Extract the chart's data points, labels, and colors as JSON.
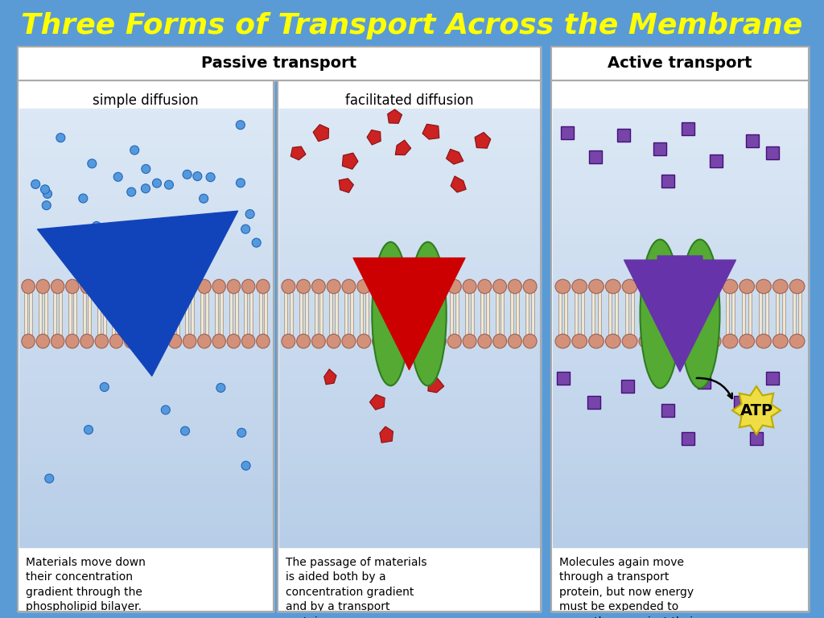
{
  "title": "Three Forms of Transport Across the Membrane",
  "title_color": "#FFFF00",
  "title_fontsize": 26,
  "bg_color": "#5B9BD5",
  "passive_label": "Passive transport",
  "active_label": "Active transport",
  "panel1_label": "simple diffusion",
  "panel2_label": "facilitated diffusion",
  "panel3_label": "Active transport",
  "text1": "Materials move down\ntheir concentration\ngradient through the\nphospholipid bilayer.",
  "text2": "The passage of materials\nis aided both by a\nconcentration gradient\nand by a transport\nprotein.",
  "text3": "Molecules again move\nthrough a transport\nprotein, but now energy\nmust be expended to\nmove them against their\nconcentration gradient.",
  "head_color": "#D4917A",
  "head_edge": "#9B6050",
  "tail_color": "#F0EAD8",
  "tail_edge": "#B0A090",
  "blue_dot": "#5599DD",
  "blue_dot_edge": "#2266BB",
  "red_mol": "#CC2222",
  "purple_mol": "#7744AA",
  "green_protein": "#55AA33",
  "green_edge": "#2E7D22",
  "arrow_blue": "#1144BB",
  "arrow_red": "#CC0000",
  "arrow_purple": "#6633AA",
  "atp_bg": "#EEDD44",
  "atp_text": "ATP",
  "panel_bg_top": "#E8EEF5",
  "panel_bg_bot": "#C0D4EE"
}
